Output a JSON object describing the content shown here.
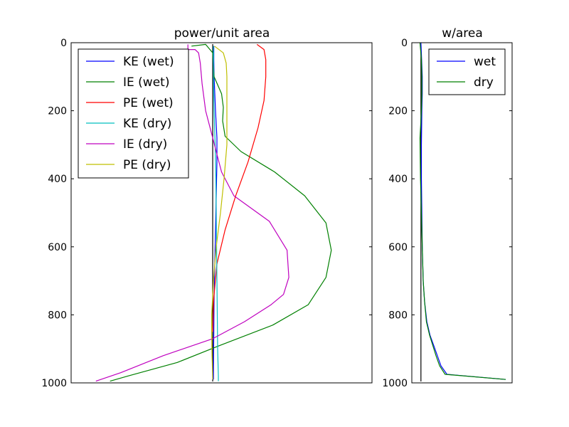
{
  "chart_data": [
    {
      "type": "line",
      "title": "power/unit area",
      "xlabel": "",
      "ylabel": "",
      "xlim": [
        -0.4,
        0.45
      ],
      "ylim": [
        1000,
        0
      ],
      "y_inverted": true,
      "y_ticks": [
        "0",
        "200",
        "400",
        "600",
        "800",
        "1000"
      ],
      "legend_position": "upper-left",
      "grid": false,
      "zero_line": true,
      "series": [
        {
          "name": "KE (wet)",
          "color": "#0000ff",
          "x": [
            0.003,
            0.003,
            0.004,
            0.008,
            0.012,
            0.012,
            0.01,
            0.008,
            0.006,
            0.004,
            0.003,
            0.002,
            0.002
          ],
          "y": [
            10,
            50,
            100,
            200,
            280,
            350,
            450,
            550,
            650,
            750,
            850,
            950,
            990
          ]
        },
        {
          "name": "IE (wet)",
          "color": "#008000",
          "x": [
            -0.06,
            -0.02,
            0.0,
            0.004,
            0.025,
            0.03,
            0.028,
            0.035,
            0.08,
            0.175,
            0.26,
            0.32,
            0.335,
            0.32,
            0.27,
            0.17,
            0.02,
            -0.1,
            -0.24,
            -0.29
          ],
          "y": [
            10,
            5,
            30,
            100,
            150,
            190,
            230,
            275,
            320,
            380,
            450,
            530,
            610,
            690,
            770,
            830,
            890,
            940,
            980,
            995
          ]
        },
        {
          "name": "PE (wet)",
          "color": "#ff0000",
          "x": [
            0.125,
            0.145,
            0.15,
            0.15,
            0.145,
            0.128,
            0.1,
            0.065,
            0.035,
            0.012,
            0.003,
            0.0
          ],
          "y": [
            5,
            20,
            50,
            100,
            170,
            250,
            350,
            450,
            550,
            650,
            750,
            850
          ]
        },
        {
          "name": "KE (dry)",
          "color": "#00bfbf",
          "x": [
            0.002,
            0.002,
            0.004,
            0.007,
            0.009,
            0.01,
            0.012,
            0.014,
            0.016,
            0.016
          ],
          "y": [
            10,
            100,
            200,
            300,
            400,
            500,
            700,
            900,
            980,
            995
          ]
        },
        {
          "name": "IE (dry)",
          "color": "#bf00bf",
          "x": [
            -0.07,
            -0.07,
            -0.05,
            -0.04,
            -0.035,
            -0.03,
            -0.02,
            0.0,
            0.01,
            0.025,
            0.06,
            0.16,
            0.21,
            0.215,
            0.2,
            0.165,
            0.09,
            0.0,
            -0.14,
            -0.26,
            -0.33
          ],
          "y": [
            5,
            20,
            20,
            30,
            60,
            120,
            200,
            280,
            320,
            380,
            450,
            525,
            610,
            690,
            740,
            770,
            820,
            870,
            920,
            970,
            995
          ]
        },
        {
          "name": "PE (dry)",
          "color": "#bfbf00",
          "x": [
            0.005,
            0.03,
            0.038,
            0.04,
            0.04,
            0.04,
            0.032,
            0.022,
            0.01,
            0.002,
            -0.003,
            -0.003,
            -0.002,
            0.0
          ],
          "y": [
            10,
            30,
            60,
            100,
            200,
            300,
            400,
            500,
            600,
            700,
            800,
            850,
            920,
            990
          ]
        }
      ]
    },
    {
      "type": "line",
      "title": "w/area",
      "xlabel": "",
      "ylabel": "",
      "xlim": [
        -0.002,
        0.02
      ],
      "ylim": [
        1000,
        0
      ],
      "y_inverted": true,
      "y_ticks": [
        "0",
        "200",
        "400",
        "600",
        "800",
        "1000"
      ],
      "legend_position": "upper-right",
      "grid": false,
      "zero_line": true,
      "series": [
        {
          "name": "wet",
          "color": "#0000ff",
          "x": [
            0.0,
            0.00015,
            0.0003,
            0.0003,
            0.0002,
            0.0001,
            0.0001,
            0.0002,
            0.0003,
            0.0005,
            0.0008,
            0.0013,
            0.002,
            0.0028,
            0.0036,
            0.0044,
            0.0057,
            0.0186
          ],
          "y": [
            0,
            50,
            100,
            150,
            200,
            300,
            400,
            500,
            600,
            700,
            760,
            820,
            860,
            890,
            920,
            950,
            975,
            990
          ]
        },
        {
          "name": "dry",
          "color": "#008000",
          "x": [
            -0.0002,
            0.0001,
            0.0002,
            0.0002,
            0.0001,
            -0.0002,
            -0.0001,
            0.0001,
            0.0003,
            0.0005,
            0.0008,
            0.0012,
            0.0019,
            0.0026,
            0.0033,
            0.0041,
            0.0053,
            0.0186
          ],
          "y": [
            0,
            50,
            100,
            150,
            200,
            280,
            400,
            500,
            600,
            700,
            760,
            820,
            860,
            890,
            920,
            950,
            975,
            990
          ]
        }
      ]
    }
  ]
}
